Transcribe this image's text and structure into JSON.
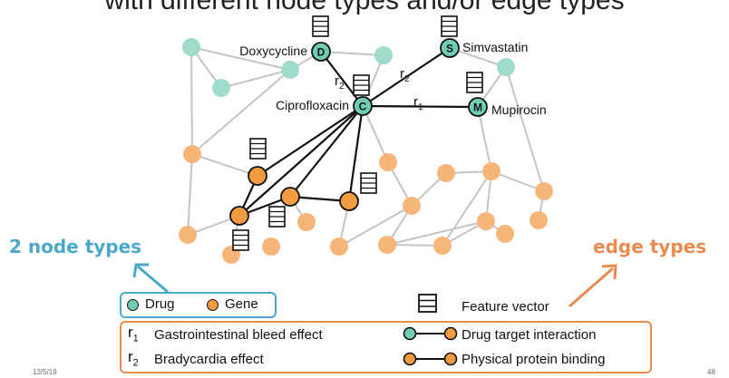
{
  "title": "with different node types and/or edge types",
  "callouts": {
    "node_types": "2 node types",
    "edge_types": "edge types"
  },
  "graph": {
    "drug_labels": {
      "doxycycline": "Doxycycline",
      "ciprofloxacin": "Ciprofloxacin",
      "simvastatin": "Simvastatin",
      "mupirocin": "Mupirocin"
    },
    "drug_letters": {
      "doxycycline": "D",
      "ciprofloxacin": "C",
      "simvastatin": "S",
      "mupirocin": "M"
    },
    "edge_labels": {
      "d_c": "r2",
      "c_s": "r2",
      "c_m": "r1"
    }
  },
  "legend": {
    "drug": "Drug",
    "gene": "Gene",
    "feature_vector": "Feature vector",
    "r1_symbol": "r",
    "r1_sub": "1",
    "r1_text": "Gastrointestinal bleed effect",
    "r2_symbol": "r",
    "r2_sub": "2",
    "r2_text": "Bradycardia effect",
    "drug_target": "Drug target interaction",
    "protein_binding": "Physical protein binding"
  },
  "footer": {
    "date": "12/5/19",
    "page": "48"
  },
  "colors": {
    "drug_fill": "#6fcdb5",
    "drug_light": "#9fdccc",
    "gene_fill": "#f29b3f",
    "gene_light": "#f6b67a",
    "node_accent": "#4aa8c8",
    "edge_accent": "#ea8a4e",
    "gray_edge": "#c4c4c4"
  }
}
